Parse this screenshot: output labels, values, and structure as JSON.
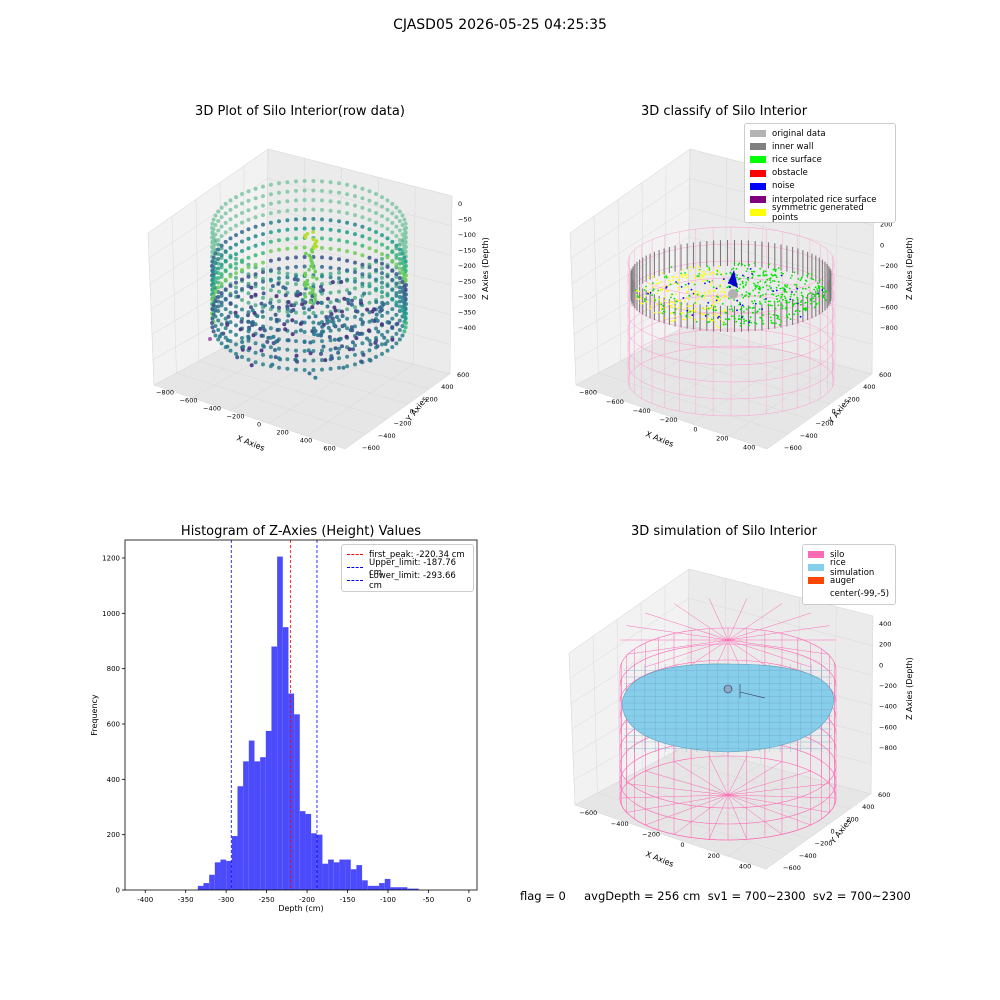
{
  "suptitle": "CJASD05 2026-05-25 04:25:35",
  "flag_line": "flag = 0     avgDepth = 256 cm  sv1 = 700~2300  sv2 = 700~2300",
  "chart_data": [
    {
      "type": "scatter3d",
      "title": "3D Plot of Silo Interior(row data)",
      "xlabel": "X Axies",
      "ylabel": "Y Axies",
      "zlabel": "Z Axies (Depth)",
      "xticks": [
        "−800",
        "−600",
        "−400",
        "−200",
        "0",
        "200",
        "400",
        "600"
      ],
      "yticks": [
        "−600",
        "−400",
        "−200",
        "0",
        "200",
        "400",
        "600"
      ],
      "zticks": [
        "0",
        "−50",
        "−100",
        "−150",
        "−200",
        "−250",
        "−300",
        "−350",
        "−400"
      ],
      "colormap": "viridis"
    },
    {
      "type": "scatter3d",
      "title": "3D classify of Silo Interior",
      "xlabel": "X Axies",
      "ylabel": "Y Axies",
      "zlabel": "Z Axies (Depth)",
      "xticks": [
        "−800",
        "−600",
        "−400",
        "−200",
        "0",
        "200",
        "400"
      ],
      "yticks": [
        "−600",
        "−400",
        "−200",
        "0",
        "200",
        "400",
        "600"
      ],
      "zticks": [
        "400",
        "200",
        "0",
        "−200",
        "−400",
        "−600",
        "−800"
      ],
      "legend": [
        {
          "label": "original data",
          "color": "#b3b3b3"
        },
        {
          "label": "inner wall",
          "color": "#808080"
        },
        {
          "label": "rice surface",
          "color": "#00ff00"
        },
        {
          "label": "obstacle",
          "color": "#ff0000"
        },
        {
          "label": "noise",
          "color": "#0000ff"
        },
        {
          "label": "interpolated rice surface",
          "color": "#800080"
        },
        {
          "label": "symmetric generated points",
          "color": "#ffff00"
        }
      ]
    },
    {
      "type": "bar",
      "title": "Histogram of Z-Axies (Height) Values",
      "xlabel": "Depth (cm)",
      "ylabel": "Frequency",
      "xlim": [
        -425,
        10
      ],
      "ylim": [
        0,
        1265
      ],
      "xticks": [
        -400,
        -350,
        -300,
        -250,
        -200,
        -150,
        -100,
        -50,
        0
      ],
      "yticks": [
        0,
        200,
        400,
        600,
        800,
        1000,
        1200
      ],
      "bar_color": "#4b4bfb",
      "bins": [
        {
          "start": -335,
          "end": -328,
          "count": 15
        },
        {
          "start": -328,
          "end": -321,
          "count": 25
        },
        {
          "start": -321,
          "end": -314,
          "count": 55
        },
        {
          "start": -314,
          "end": -307,
          "count": 100
        },
        {
          "start": -307,
          "end": -300,
          "count": 110
        },
        {
          "start": -300,
          "end": -293,
          "count": 105
        },
        {
          "start": -293,
          "end": -286,
          "count": 195
        },
        {
          "start": -286,
          "end": -279,
          "count": 375
        },
        {
          "start": -279,
          "end": -272,
          "count": 465
        },
        {
          "start": -272,
          "end": -265,
          "count": 540
        },
        {
          "start": -265,
          "end": -258,
          "count": 465
        },
        {
          "start": -258,
          "end": -251,
          "count": 480
        },
        {
          "start": -251,
          "end": -244,
          "count": 575
        },
        {
          "start": -244,
          "end": -237,
          "count": 880
        },
        {
          "start": -237,
          "end": -230,
          "count": 1205
        },
        {
          "start": -230,
          "end": -223,
          "count": 950
        },
        {
          "start": -223,
          "end": -216,
          "count": 710
        },
        {
          "start": -216,
          "end": -209,
          "count": 635
        },
        {
          "start": -209,
          "end": -202,
          "count": 285
        },
        {
          "start": -202,
          "end": -195,
          "count": 275
        },
        {
          "start": -195,
          "end": -188,
          "count": 205
        },
        {
          "start": -188,
          "end": -181,
          "count": 200
        },
        {
          "start": -181,
          "end": -174,
          "count": 95
        },
        {
          "start": -174,
          "end": -167,
          "count": 110
        },
        {
          "start": -167,
          "end": -160,
          "count": 100
        },
        {
          "start": -160,
          "end": -153,
          "count": 110
        },
        {
          "start": -153,
          "end": -146,
          "count": 110
        },
        {
          "start": -146,
          "end": -139,
          "count": 75
        },
        {
          "start": -139,
          "end": -132,
          "count": 90
        },
        {
          "start": -132,
          "end": -125,
          "count": 35
        },
        {
          "start": -125,
          "end": -118,
          "count": 15
        },
        {
          "start": -118,
          "end": -111,
          "count": 15
        },
        {
          "start": -111,
          "end": -104,
          "count": 25
        },
        {
          "start": -104,
          "end": -97,
          "count": 40
        },
        {
          "start": -97,
          "end": -90,
          "count": 10
        },
        {
          "start": -90,
          "end": -83,
          "count": 10
        },
        {
          "start": -83,
          "end": -76,
          "count": 10
        },
        {
          "start": -76,
          "end": -69,
          "count": 5
        },
        {
          "start": -69,
          "end": -62,
          "count": 5
        }
      ],
      "vlines": [
        {
          "label": "first_peak: -220.34 cm",
          "x": -220.34,
          "color": "#ff0000"
        },
        {
          "label": "Upper_limit: -187.76 cm",
          "x": -187.76,
          "color": "#0000ff"
        },
        {
          "label": "Lower_limit: -293.66 cm",
          "x": -293.66,
          "color": "#0000ff"
        }
      ]
    },
    {
      "type": "surface3d",
      "title": "3D simulation of Silo Interior",
      "xlabel": "X Axies",
      "ylabel": "Y Axies",
      "zlabel": "Z Axies (Depth)",
      "xticks": [
        "−600",
        "−400",
        "−200",
        "0",
        "200",
        "400"
      ],
      "yticks": [
        "−600",
        "−400",
        "−200",
        "0",
        "200",
        "400",
        "600"
      ],
      "zticks": [
        "400",
        "200",
        "0",
        "−200",
        "−400",
        "−600",
        "−800"
      ],
      "legend": [
        {
          "label": "silo",
          "color": "#ff69b4"
        },
        {
          "label": "rice simulation",
          "color": "#87ceeb"
        },
        {
          "label": "auger",
          "color": "#ff4500"
        },
        {
          "label": "center(-99,-5)",
          "color": "#ffffff"
        }
      ]
    }
  ]
}
